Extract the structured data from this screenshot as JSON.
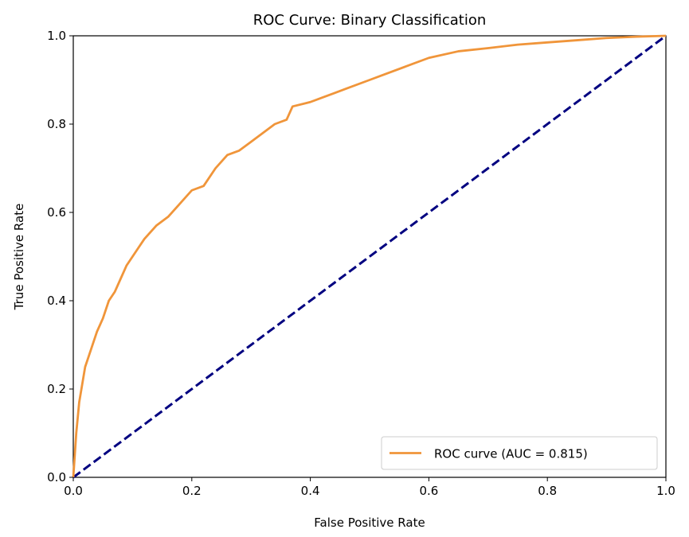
{
  "chart_data": {
    "type": "line",
    "title": "ROC Curve: Binary Classification",
    "xlabel": "False Positive Rate",
    "ylabel": "True Positive Rate",
    "xlim": [
      0.0,
      1.0
    ],
    "ylim": [
      0.0,
      1.0
    ],
    "xticks": [
      "0.0",
      "0.2",
      "0.4",
      "0.6",
      "0.8",
      "1.0"
    ],
    "yticks": [
      "0.0",
      "0.2",
      "0.4",
      "0.6",
      "0.8",
      "1.0"
    ],
    "grid": false,
    "legend_position": "lower-right",
    "series": [
      {
        "name": "ROC curve (AUC = 0.815)",
        "color": "#f0953a",
        "style": "solid",
        "x": [
          0.0,
          0.005,
          0.01,
          0.015,
          0.02,
          0.025,
          0.03,
          0.04,
          0.05,
          0.06,
          0.07,
          0.08,
          0.09,
          0.1,
          0.11,
          0.12,
          0.14,
          0.16,
          0.18,
          0.2,
          0.22,
          0.24,
          0.26,
          0.28,
          0.3,
          0.32,
          0.34,
          0.36,
          0.37,
          0.4,
          0.42,
          0.44,
          0.46,
          0.5,
          0.52,
          0.56,
          0.6,
          0.65,
          0.7,
          0.75,
          0.8,
          0.85,
          0.9,
          0.95,
          1.0
        ],
        "y": [
          0.0,
          0.1,
          0.17,
          0.21,
          0.25,
          0.27,
          0.29,
          0.33,
          0.36,
          0.4,
          0.42,
          0.45,
          0.48,
          0.5,
          0.52,
          0.54,
          0.57,
          0.59,
          0.62,
          0.65,
          0.66,
          0.7,
          0.73,
          0.74,
          0.76,
          0.78,
          0.8,
          0.81,
          0.84,
          0.85,
          0.86,
          0.87,
          0.88,
          0.9,
          0.91,
          0.93,
          0.95,
          0.965,
          0.972,
          0.98,
          0.985,
          0.99,
          0.995,
          0.998,
          1.0
        ]
      },
      {
        "name": "",
        "color": "#000080",
        "style": "dashed",
        "x": [
          0.0,
          1.0
        ],
        "y": [
          0.0,
          1.0
        ]
      }
    ]
  }
}
